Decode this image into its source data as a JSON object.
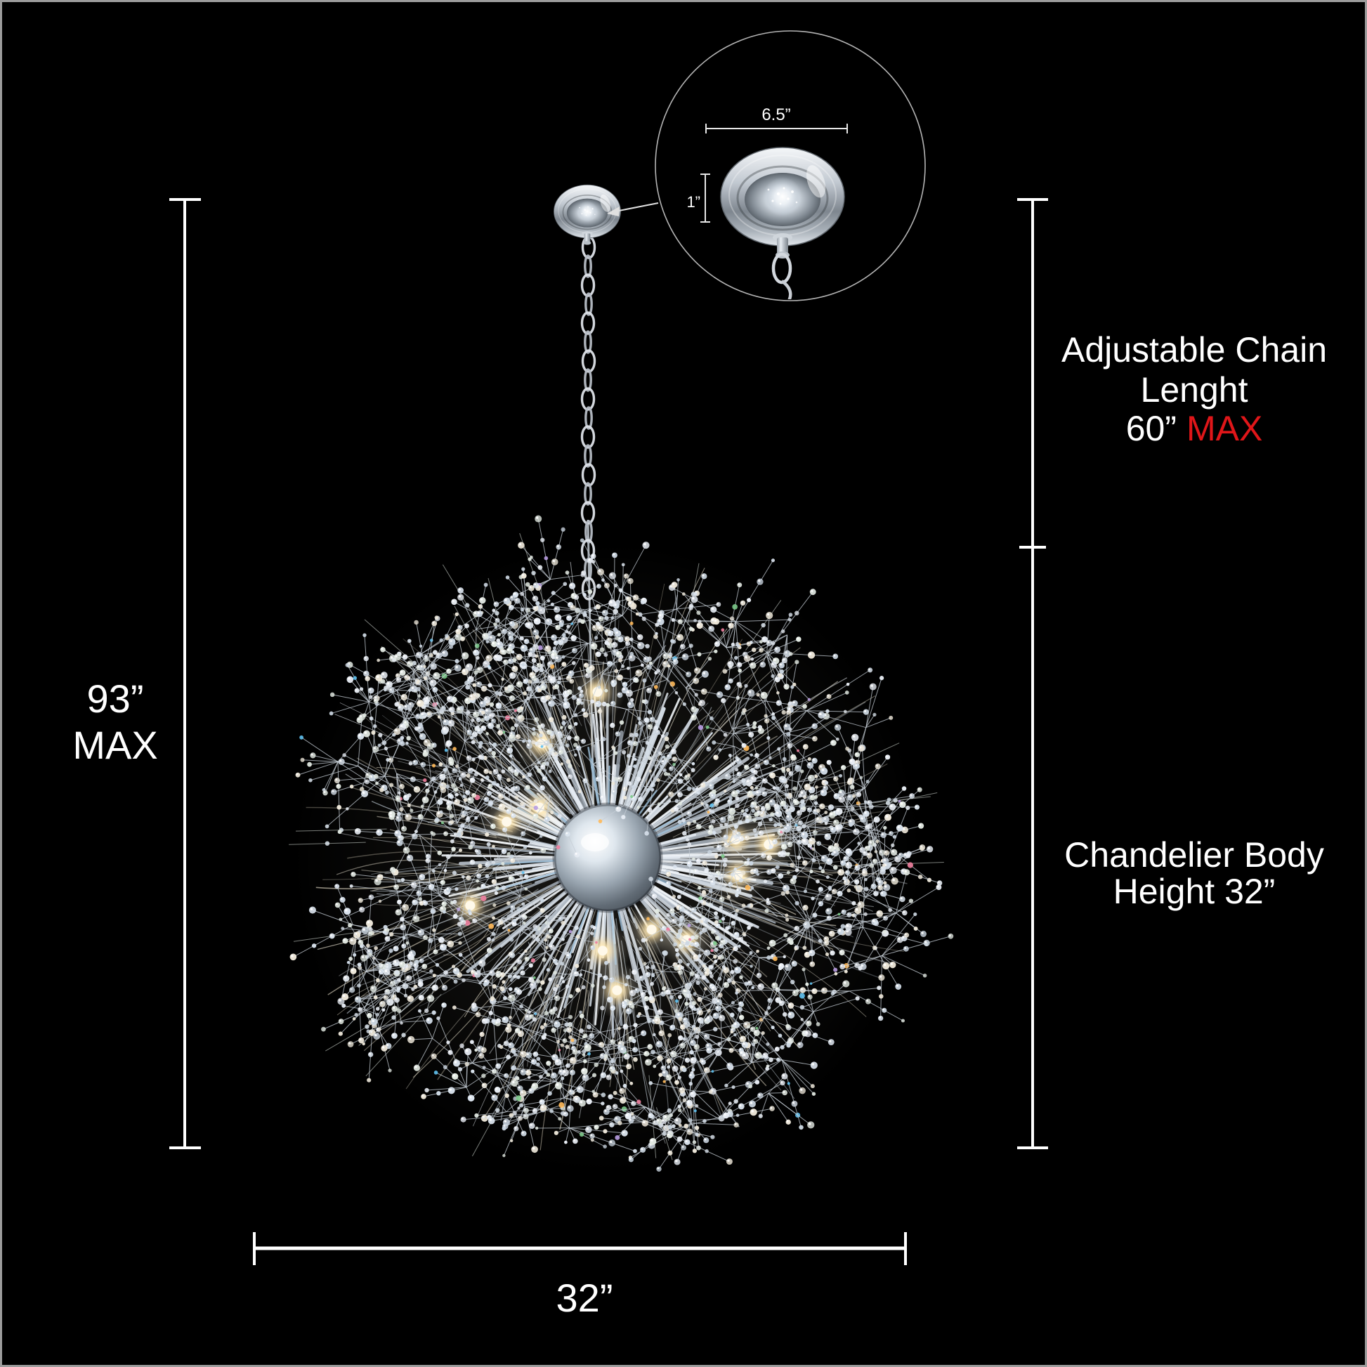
{
  "annotations": {
    "left": {
      "value": "93”",
      "qualifier": "MAX"
    },
    "right_top": {
      "line1": "Adjustable Chain",
      "line2": "Lenght",
      "value": "60”",
      "qualifier": "MAX"
    },
    "right_bottom": {
      "line1": "Chandelier Body",
      "line2": "Height 32”"
    },
    "bottom": {
      "value": "32”"
    },
    "inset": {
      "width_label": "6.5”",
      "height_label": "1”"
    }
  },
  "colors": {
    "background": "#000000",
    "border": "#9c9c9c",
    "text": "#ffffff",
    "accent_red": "#e01619",
    "dimension_line": "#ffffff"
  }
}
